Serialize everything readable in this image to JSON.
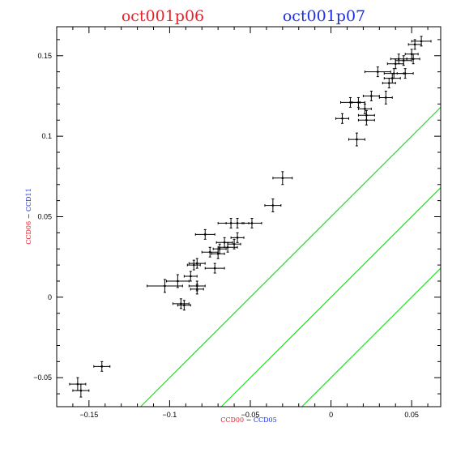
{
  "header": {
    "left_title": "oct001p06",
    "right_title": "oct001p07",
    "left_color": "#e8202a",
    "right_color": "#1f2ee0"
  },
  "xaxis": {
    "label_left": "CCD00",
    "label_sep": " − ",
    "label_right": "CCD05"
  },
  "yaxis": {
    "label_left": "CCD06",
    "label_sep": " − ",
    "label_right": "CCD11"
  },
  "chart_data": {
    "type": "scatter",
    "title": "",
    "xlim": [
      -0.17,
      0.068
    ],
    "ylim": [
      -0.068,
      0.168
    ],
    "x_ticks": [
      -0.15,
      -0.1,
      -0.05,
      0,
      0.05
    ],
    "x_tick_labels": [
      "−0.15",
      "−0.1",
      "−0.05",
      "0",
      "0.05"
    ],
    "y_ticks": [
      -0.05,
      0,
      0.05,
      0.1,
      0.15
    ],
    "y_tick_labels": [
      "−0.05",
      "0",
      "0.05",
      "0.1",
      "0.15"
    ],
    "grid": false,
    "line_color": "#22dd22",
    "point_color": "#000000",
    "lines": [
      {
        "slope": 1,
        "intercept": 0.05
      },
      {
        "slope": 1,
        "intercept": 0.0
      },
      {
        "slope": 1,
        "intercept": -0.05
      }
    ],
    "points": [
      {
        "x": -0.157,
        "y": -0.054,
        "xerr": 0.005,
        "yerr": 0.004
      },
      {
        "x": -0.155,
        "y": -0.058,
        "xerr": 0.005,
        "yerr": 0.004
      },
      {
        "x": -0.142,
        "y": -0.043,
        "xerr": 0.005,
        "yerr": 0.003
      },
      {
        "x": -0.103,
        "y": 0.007,
        "xerr": 0.011,
        "yerr": 0.004
      },
      {
        "x": -0.095,
        "y": 0.01,
        "xerr": 0.007,
        "yerr": 0.004
      },
      {
        "x": -0.093,
        "y": -0.004,
        "xerr": 0.005,
        "yerr": 0.003
      },
      {
        "x": -0.091,
        "y": -0.005,
        "xerr": 0.004,
        "yerr": 0.003
      },
      {
        "x": -0.087,
        "y": 0.013,
        "xerr": 0.004,
        "yerr": 0.003
      },
      {
        "x": -0.085,
        "y": 0.02,
        "xerr": 0.004,
        "yerr": 0.003
      },
      {
        "x": -0.083,
        "y": 0.021,
        "xerr": 0.005,
        "yerr": 0.003
      },
      {
        "x": -0.083,
        "y": 0.007,
        "xerr": 0.005,
        "yerr": 0.003
      },
      {
        "x": -0.083,
        "y": 0.005,
        "xerr": 0.004,
        "yerr": 0.003
      },
      {
        "x": -0.078,
        "y": 0.039,
        "xerr": 0.006,
        "yerr": 0.003
      },
      {
        "x": -0.075,
        "y": 0.028,
        "xerr": 0.005,
        "yerr": 0.003
      },
      {
        "x": -0.072,
        "y": 0.018,
        "xerr": 0.006,
        "yerr": 0.003
      },
      {
        "x": -0.07,
        "y": 0.027,
        "xerr": 0.004,
        "yerr": 0.003
      },
      {
        "x": -0.069,
        "y": 0.03,
        "xerr": 0.004,
        "yerr": 0.003
      },
      {
        "x": -0.066,
        "y": 0.034,
        "xerr": 0.005,
        "yerr": 0.003
      },
      {
        "x": -0.064,
        "y": 0.031,
        "xerr": 0.006,
        "yerr": 0.003
      },
      {
        "x": -0.062,
        "y": 0.046,
        "xerr": 0.008,
        "yerr": 0.003
      },
      {
        "x": -0.06,
        "y": 0.033,
        "xerr": 0.004,
        "yerr": 0.003
      },
      {
        "x": -0.058,
        "y": 0.037,
        "xerr": 0.004,
        "yerr": 0.003
      },
      {
        "x": -0.058,
        "y": 0.046,
        "xerr": 0.007,
        "yerr": 0.003
      },
      {
        "x": -0.049,
        "y": 0.046,
        "xerr": 0.006,
        "yerr": 0.003
      },
      {
        "x": -0.036,
        "y": 0.057,
        "xerr": 0.005,
        "yerr": 0.004
      },
      {
        "x": -0.03,
        "y": 0.074,
        "xerr": 0.006,
        "yerr": 0.004
      },
      {
        "x": 0.007,
        "y": 0.111,
        "xerr": 0.004,
        "yerr": 0.003
      },
      {
        "x": 0.012,
        "y": 0.121,
        "xerr": 0.006,
        "yerr": 0.003
      },
      {
        "x": 0.016,
        "y": 0.098,
        "xerr": 0.005,
        "yerr": 0.004
      },
      {
        "x": 0.017,
        "y": 0.121,
        "xerr": 0.004,
        "yerr": 0.003
      },
      {
        "x": 0.021,
        "y": 0.117,
        "xerr": 0.004,
        "yerr": 0.003
      },
      {
        "x": 0.022,
        "y": 0.11,
        "xerr": 0.005,
        "yerr": 0.003
      },
      {
        "x": 0.022,
        "y": 0.113,
        "xerr": 0.005,
        "yerr": 0.003
      },
      {
        "x": 0.025,
        "y": 0.125,
        "xerr": 0.005,
        "yerr": 0.003
      },
      {
        "x": 0.029,
        "y": 0.14,
        "xerr": 0.008,
        "yerr": 0.003
      },
      {
        "x": 0.034,
        "y": 0.124,
        "xerr": 0.004,
        "yerr": 0.004
      },
      {
        "x": 0.036,
        "y": 0.133,
        "xerr": 0.004,
        "yerr": 0.003
      },
      {
        "x": 0.038,
        "y": 0.136,
        "xerr": 0.005,
        "yerr": 0.003
      },
      {
        "x": 0.039,
        "y": 0.139,
        "xerr": 0.006,
        "yerr": 0.003
      },
      {
        "x": 0.04,
        "y": 0.145,
        "xerr": 0.005,
        "yerr": 0.003
      },
      {
        "x": 0.042,
        "y": 0.148,
        "xerr": 0.005,
        "yerr": 0.003
      },
      {
        "x": 0.045,
        "y": 0.147,
        "xerr": 0.005,
        "yerr": 0.003
      },
      {
        "x": 0.046,
        "y": 0.139,
        "xerr": 0.005,
        "yerr": 0.003
      },
      {
        "x": 0.05,
        "y": 0.151,
        "xerr": 0.004,
        "yerr": 0.003
      },
      {
        "x": 0.051,
        "y": 0.148,
        "xerr": 0.004,
        "yerr": 0.003
      },
      {
        "x": 0.052,
        "y": 0.157,
        "xerr": 0.004,
        "yerr": 0.003
      },
      {
        "x": 0.056,
        "y": 0.159,
        "xerr": 0.006,
        "yerr": 0.003
      }
    ]
  }
}
